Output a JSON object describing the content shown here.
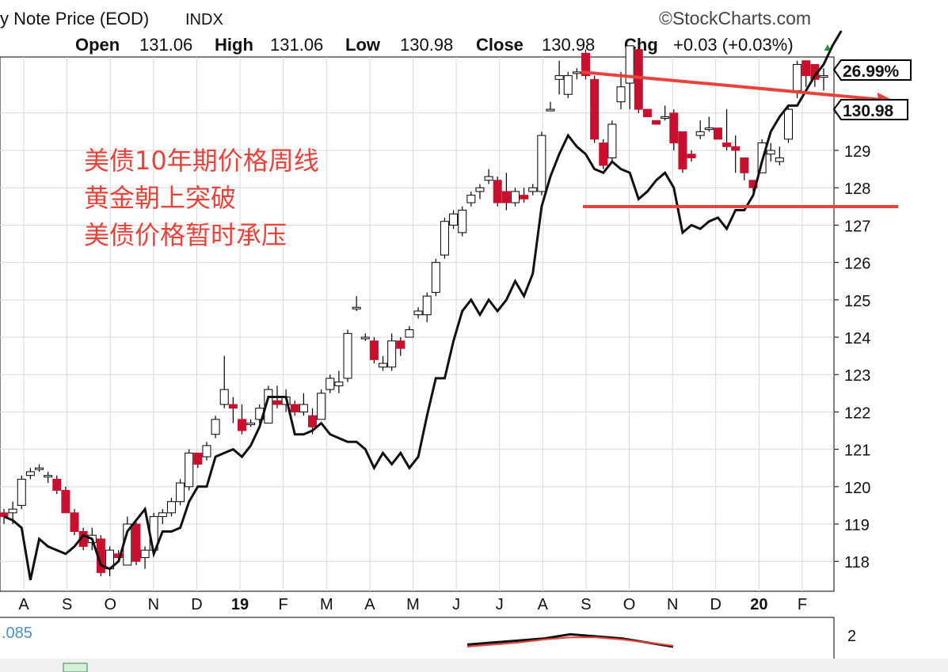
{
  "header": {
    "title": "y Note Price (EOD)",
    "index_tag": "INDX",
    "brand": "©StockCharts.com",
    "open_label": "Open",
    "open_value": "131.06",
    "high_label": "High",
    "high_value": "131.06",
    "low_label": "Low",
    "low_value": "130.98",
    "close_label": "Close",
    "close_value": "130.98",
    "chg_label": "Chg",
    "chg_value": "+0.03 (+0.03%)",
    "chg_arrow": "▲"
  },
  "overlay": {
    "red_color": "#e8423a",
    "line1": "美债10年期价格周线",
    "line2": "黄金朝上突破",
    "line3": "美债价格暂时承压"
  },
  "tags": {
    "pct_tag": "26.99%",
    "price_tag": "130.98"
  },
  "lower_panel": {
    "value_label": ".085",
    "ytick": "2"
  },
  "colors": {
    "up": "#ffffff",
    "down": "#c8102e",
    "outline": "#000000",
    "grid": "#d8d8d8",
    "overlay_line": "#000000",
    "annotation": "#e8423a"
  },
  "chart_data": {
    "type": "candlestick",
    "x_labels": [
      "A",
      "S",
      "O",
      "N",
      "D",
      "19",
      "F",
      "M",
      "A",
      "M",
      "J",
      "J",
      "A",
      "S",
      "O",
      "N",
      "D",
      "20",
      "F"
    ],
    "y_ticks": [
      118,
      119,
      120,
      121,
      122,
      123,
      124,
      125,
      126,
      127,
      128,
      129,
      130
    ],
    "ylim": [
      117.2,
      131.5
    ],
    "candles": [
      [
        119.3,
        119.4,
        119.0,
        119.2
      ],
      [
        119.3,
        119.6,
        119.0,
        119.4
      ],
      [
        119.5,
        120.3,
        119.4,
        120.2
      ],
      [
        120.3,
        120.5,
        120.2,
        120.4
      ],
      [
        120.5,
        120.6,
        120.4,
        120.5
      ],
      [
        120.3,
        120.4,
        120.1,
        120.3
      ],
      [
        120.2,
        120.3,
        119.8,
        119.9
      ],
      [
        119.9,
        120.0,
        119.3,
        119.3
      ],
      [
        119.3,
        119.4,
        118.7,
        118.8
      ],
      [
        118.8,
        118.9,
        118.3,
        118.4
      ],
      [
        118.5,
        118.9,
        118.3,
        118.7
      ],
      [
        118.6,
        118.7,
        117.6,
        117.7
      ],
      [
        117.8,
        118.4,
        117.6,
        118.3
      ],
      [
        118.2,
        118.3,
        118.0,
        118.1
      ],
      [
        117.9,
        119.2,
        117.9,
        119.0
      ],
      [
        119.0,
        119.1,
        117.9,
        118.0
      ],
      [
        118.1,
        118.4,
        117.8,
        118.3
      ],
      [
        118.3,
        119.3,
        118.2,
        119.2
      ],
      [
        119.2,
        119.4,
        119.0,
        119.3
      ],
      [
        119.3,
        119.7,
        119.2,
        119.6
      ],
      [
        119.6,
        120.2,
        119.5,
        120.1
      ],
      [
        120.0,
        121.0,
        119.9,
        120.9
      ],
      [
        120.9,
        120.9,
        120.5,
        120.6
      ],
      [
        120.8,
        121.2,
        120.7,
        121.1
      ],
      [
        121.4,
        121.9,
        121.3,
        121.8
      ],
      [
        122.2,
        123.5,
        122.1,
        122.6
      ],
      [
        122.2,
        122.4,
        121.7,
        122.1
      ],
      [
        121.8,
        122.2,
        121.4,
        121.5
      ],
      [
        121.7,
        121.8,
        121.6,
        121.7
      ],
      [
        121.8,
        122.2,
        121.7,
        122.1
      ],
      [
        121.7,
        122.7,
        121.7,
        122.6
      ],
      [
        122.3,
        122.7,
        122.1,
        122.2
      ],
      [
        122.2,
        122.6,
        122.0,
        122.4
      ],
      [
        122.2,
        122.3,
        121.9,
        122.0
      ],
      [
        122.0,
        122.5,
        121.9,
        122.2
      ],
      [
        121.9,
        122.1,
        121.4,
        121.6
      ],
      [
        121.8,
        122.6,
        121.8,
        122.5
      ],
      [
        122.6,
        123.0,
        122.5,
        122.9
      ],
      [
        122.7,
        123.1,
        122.5,
        122.8
      ],
      [
        122.9,
        124.2,
        122.8,
        124.1
      ],
      [
        124.8,
        125.1,
        124.7,
        124.8
      ],
      [
        124.0,
        124.1,
        123.9,
        124.0
      ],
      [
        123.9,
        124.0,
        123.3,
        123.4
      ],
      [
        123.2,
        123.5,
        123.1,
        123.3
      ],
      [
        123.2,
        124.1,
        123.1,
        123.9
      ],
      [
        123.9,
        124.0,
        123.5,
        123.7
      ],
      [
        124.0,
        124.3,
        124.0,
        124.2
      ],
      [
        124.6,
        124.8,
        124.5,
        124.7
      ],
      [
        124.6,
        125.2,
        124.4,
        125.1
      ],
      [
        125.2,
        126.1,
        125.1,
        126.0
      ],
      [
        126.2,
        127.2,
        126.1,
        127.1
      ],
      [
        127.0,
        127.4,
        126.9,
        127.3
      ],
      [
        126.8,
        127.5,
        126.7,
        127.4
      ],
      [
        127.6,
        127.9,
        127.5,
        127.8
      ],
      [
        127.9,
        128.1,
        127.7,
        128.0
      ],
      [
        128.2,
        128.5,
        128.1,
        128.3
      ],
      [
        128.2,
        128.3,
        127.5,
        127.6
      ],
      [
        127.9,
        128.4,
        127.4,
        127.6
      ],
      [
        127.6,
        128.0,
        127.5,
        127.9
      ],
      [
        127.8,
        128.0,
        127.6,
        127.7
      ],
      [
        127.9,
        128.1,
        127.8,
        128.0
      ],
      [
        127.9,
        129.5,
        127.8,
        129.4
      ],
      [
        130.1,
        130.3,
        130.1,
        130.1
      ],
      [
        130.9,
        131.4,
        130.5,
        131.0
      ],
      [
        130.5,
        131.1,
        130.4,
        131.0
      ],
      [
        131.1,
        131.2,
        130.9,
        131.1
      ],
      [
        131.6,
        131.7,
        130.9,
        131.0
      ],
      [
        130.9,
        131.0,
        129.2,
        129.3
      ],
      [
        129.2,
        129.3,
        128.5,
        128.6
      ],
      [
        128.8,
        129.8,
        128.7,
        129.7
      ],
      [
        130.3,
        131.1,
        130.1,
        130.7
      ],
      [
        130.8,
        131.8,
        130.1,
        131.8
      ],
      [
        131.7,
        131.8,
        130.0,
        130.1
      ],
      [
        130.1,
        130.1,
        129.9,
        129.9
      ],
      [
        129.8,
        129.8,
        129.7,
        129.7
      ],
      [
        129.9,
        130.2,
        129.8,
        129.9
      ],
      [
        130.0,
        130.1,
        129.0,
        129.2
      ],
      [
        129.5,
        129.5,
        128.4,
        128.5
      ],
      [
        128.9,
        129.0,
        128.7,
        128.8
      ],
      [
        129.4,
        129.8,
        129.3,
        129.5
      ],
      [
        129.6,
        129.9,
        129.5,
        129.6
      ],
      [
        129.6,
        129.6,
        129.3,
        129.3
      ],
      [
        129.2,
        130.1,
        129.0,
        129.1
      ],
      [
        129.1,
        129.4,
        128.4,
        129.0
      ],
      [
        128.8,
        128.8,
        128.2,
        128.4
      ],
      [
        128.2,
        128.2,
        127.9,
        128.0
      ],
      [
        128.4,
        129.3,
        128.4,
        129.2
      ],
      [
        128.9,
        129.2,
        128.7,
        129.0
      ],
      [
        128.7,
        129.1,
        128.6,
        128.8
      ],
      [
        129.3,
        130.2,
        129.2,
        130.1
      ],
      [
        130.6,
        131.4,
        130.4,
        131.3
      ],
      [
        131.4,
        131.4,
        130.7,
        131.0
      ],
      [
        131.3,
        131.3,
        130.7,
        130.9
      ],
      [
        131.0,
        131.2,
        130.6,
        131.0
      ]
    ],
    "gold_line": [
      [
        0,
        119.2
      ],
      [
        1,
        119.1
      ],
      [
        2,
        118.9
      ],
      [
        3,
        117.5
      ],
      [
        4,
        118.6
      ],
      [
        5,
        118.4
      ],
      [
        6,
        118.3
      ],
      [
        7,
        118.2
      ],
      [
        8,
        118.4
      ],
      [
        9,
        118.7
      ],
      [
        10,
        118.6
      ],
      [
        11,
        117.9
      ],
      [
        12,
        117.8
      ],
      [
        13,
        118.0
      ],
      [
        14,
        118.8
      ],
      [
        15,
        119.1
      ],
      [
        16,
        119.4
      ],
      [
        17,
        118.2
      ],
      [
        18,
        118.8
      ],
      [
        19,
        118.8
      ],
      [
        20,
        118.9
      ],
      [
        21,
        119.6
      ],
      [
        22,
        120.0
      ],
      [
        23,
        120.0
      ],
      [
        24,
        120.8
      ],
      [
        25,
        120.9
      ],
      [
        26,
        121.0
      ],
      [
        27,
        120.8
      ],
      [
        28,
        121.1
      ],
      [
        29,
        121.6
      ],
      [
        30,
        122.4
      ],
      [
        31,
        122.4
      ],
      [
        32,
        122.4
      ],
      [
        33,
        121.4
      ],
      [
        34,
        121.4
      ],
      [
        35,
        121.5
      ],
      [
        36,
        121.7
      ],
      [
        37,
        121.4
      ],
      [
        38,
        121.3
      ],
      [
        39,
        121.2
      ],
      [
        40,
        121.2
      ],
      [
        41,
        121.0
      ],
      [
        42,
        120.5
      ],
      [
        43,
        120.9
      ],
      [
        44,
        120.6
      ],
      [
        45,
        120.9
      ],
      [
        46,
        120.5
      ],
      [
        47,
        120.8
      ],
      [
        48,
        121.9
      ],
      [
        49,
        122.9
      ],
      [
        50,
        122.9
      ],
      [
        51,
        123.9
      ],
      [
        52,
        124.7
      ],
      [
        53,
        125.0
      ],
      [
        54,
        124.6
      ],
      [
        55,
        125.0
      ],
      [
        56,
        124.7
      ],
      [
        57,
        125.0
      ],
      [
        58,
        125.5
      ],
      [
        59,
        125.1
      ],
      [
        60,
        125.7
      ],
      [
        61,
        127.5
      ],
      [
        62,
        128.3
      ],
      [
        63,
        128.9
      ],
      [
        64,
        129.4
      ],
      [
        65,
        129.1
      ],
      [
        66,
        128.9
      ],
      [
        67,
        128.5
      ],
      [
        68,
        128.4
      ],
      [
        69,
        128.7
      ],
      [
        70,
        128.5
      ],
      [
        71,
        128.4
      ],
      [
        72,
        127.7
      ],
      [
        73,
        127.9
      ],
      [
        74,
        128.2
      ],
      [
        75,
        128.4
      ],
      [
        76,
        128.0
      ],
      [
        77,
        126.8
      ],
      [
        78,
        127.0
      ],
      [
        79,
        126.9
      ],
      [
        80,
        127.1
      ],
      [
        81,
        127.2
      ],
      [
        82,
        126.9
      ],
      [
        83,
        127.4
      ],
      [
        84,
        127.4
      ],
      [
        85,
        127.8
      ],
      [
        86,
        128.7
      ],
      [
        87,
        129.5
      ],
      [
        88,
        129.9
      ],
      [
        89,
        130.2
      ],
      [
        90,
        130.2
      ],
      [
        91,
        130.6
      ],
      [
        92,
        131.0
      ],
      [
        93,
        131.3
      ],
      [
        94,
        131.8
      ],
      [
        95,
        132.2
      ]
    ],
    "lower_line_black": [
      [
        0,
        0.6
      ],
      [
        1,
        0.7
      ],
      [
        2,
        0.8
      ],
      [
        3,
        0.9
      ],
      [
        4,
        1.1
      ],
      [
        5,
        1.0
      ],
      [
        6,
        0.9
      ],
      [
        7,
        0.7
      ],
      [
        8,
        0.5
      ]
    ],
    "lower_line_red": [
      [
        0,
        0.5
      ],
      [
        1,
        0.6
      ],
      [
        2,
        0.7
      ],
      [
        3,
        0.85
      ],
      [
        4,
        0.95
      ],
      [
        5,
        0.95
      ],
      [
        6,
        0.85
      ],
      [
        7,
        0.7
      ],
      [
        8,
        0.55
      ]
    ]
  }
}
